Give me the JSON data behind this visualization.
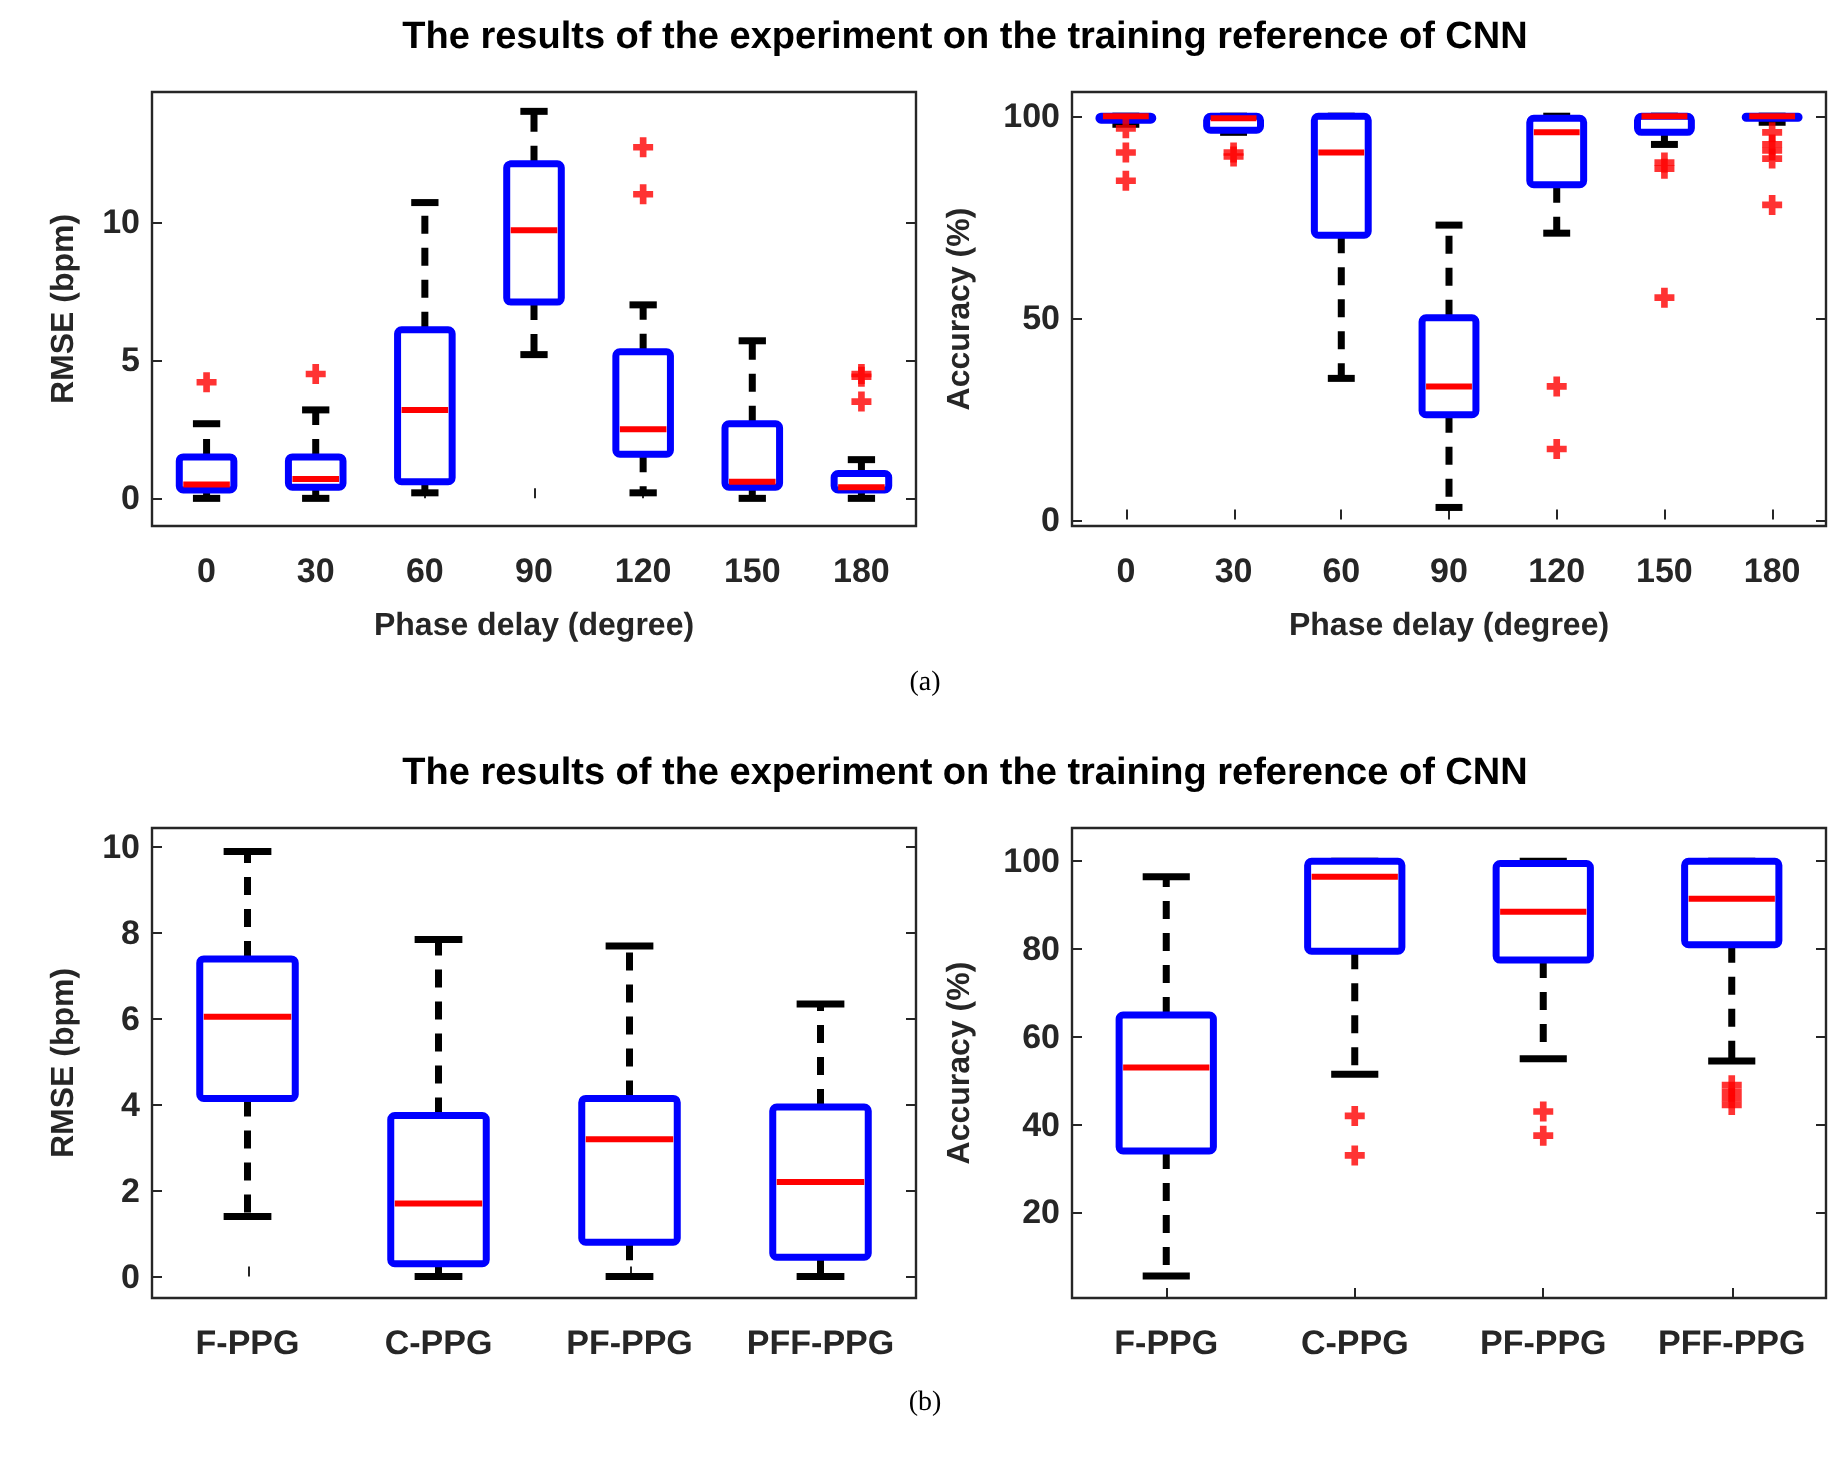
{
  "chart_data": [
    {
      "type": "box",
      "title": "The results of the experiment on the training reference of CNN",
      "xlabel": "Phase delay (degree)",
      "ylabel": "RMSE (bpm)",
      "annotations": [
        "(a)"
      ],
      "categories": [
        "0",
        "30",
        "60",
        "90",
        "120",
        "150",
        "180"
      ],
      "ylim": [
        -1,
        14.7
      ],
      "yticks": [
        0,
        5,
        10
      ],
      "grid": false,
      "marker": "cross",
      "series": [
        {
          "color": "#0000ff",
          "boxes": [
            {
              "low": 0,
              "q1": 0.3,
              "median": 0.5,
              "q3": 1.5,
              "high": 2.7,
              "outliers": [
                4.2
              ]
            },
            {
              "low": 0,
              "q1": 0.4,
              "median": 0.7,
              "q3": 1.5,
              "high": 3.2,
              "outliers": [
                4.5
              ]
            },
            {
              "low": 0.2,
              "q1": 0.6,
              "median": 3.2,
              "q3": 6.1,
              "high": 10.7
            },
            {
              "low": 5.2,
              "q1": 7.1,
              "median": 9.7,
              "q3": 12.1,
              "high": 14.0
            },
            {
              "low": 0.2,
              "q1": 1.6,
              "median": 2.5,
              "q3": 5.3,
              "high": 7.0,
              "outliers": [
                11.0,
                12.7
              ]
            },
            {
              "low": 0,
              "q1": 0.4,
              "median": 0.6,
              "q3": 2.7,
              "high": 5.7
            },
            {
              "low": 0,
              "q1": 0.3,
              "median": 0.4,
              "q3": 0.9,
              "high": 1.4,
              "outliers": [
                3.5,
                4.4,
                4.5
              ]
            }
          ]
        }
      ]
    },
    {
      "type": "box",
      "xlabel": "Phase delay (degree)",
      "ylabel": "Accuracy (%)",
      "categories": [
        "0",
        "30",
        "60",
        "90",
        "120",
        "150",
        "180"
      ],
      "ylim": [
        -1.6,
        106
      ],
      "yticks": [
        0,
        50,
        100
      ],
      "grid": false,
      "marker": "cross",
      "series": [
        {
          "color": "#0000ff",
          "boxes": [
            {
              "low": 98,
              "q1": 99,
              "median": 100,
              "q3": 100,
              "high": 100,
              "outliers": [
                84,
                91,
                97
              ]
            },
            {
              "low": 96,
              "q1": 96.5,
              "median": 99.5,
              "q3": 100,
              "high": 100,
              "outliers": [
                90,
                91
              ]
            },
            {
              "low": 35,
              "q1": 70.5,
              "median": 91,
              "q3": 100,
              "high": 100
            },
            {
              "low": 3,
              "q1": 26,
              "median": 33,
              "q3": 50,
              "high": 73
            },
            {
              "low": 71,
              "q1": 83,
              "median": 96,
              "q3": 99.5,
              "high": 100,
              "outliers": [
                17.5,
                33
              ]
            },
            {
              "low": 93,
              "q1": 96,
              "median": 100,
              "q3": 100,
              "high": 100,
              "outliers": [
                55,
                87,
                88.5
              ]
            },
            {
              "low": 98.5,
              "q1": 99.5,
              "median": 100,
              "q3": 100,
              "high": 100,
              "outliers": [
                78,
                89.5,
                91.5,
                93,
                96
              ]
            }
          ]
        }
      ]
    },
    {
      "type": "box",
      "title": "The results of the experiment on the training reference of CNN",
      "ylabel": "RMSE (bpm)",
      "annotations": [
        "(b)"
      ],
      "categories": [
        "F-PPG",
        "C-PPG",
        "PF-PPG",
        "PFF-PPG"
      ],
      "ylim": [
        -0.5,
        10.45
      ],
      "yticks": [
        0,
        2,
        4,
        6,
        8,
        10
      ],
      "grid": false,
      "marker": "cross",
      "series": [
        {
          "color": "#0000ff",
          "boxes": [
            {
              "low": 1.4,
              "q1": 4.15,
              "median": 6.05,
              "q3": 7.4,
              "high": 9.9
            },
            {
              "low": 0,
              "q1": 0.3,
              "median": 1.7,
              "q3": 3.75,
              "high": 7.85
            },
            {
              "low": 0,
              "q1": 0.8,
              "median": 3.2,
              "q3": 4.15,
              "high": 7.7
            },
            {
              "low": 0,
              "q1": 0.45,
              "median": 2.2,
              "q3": 3.95,
              "high": 6.35
            }
          ]
        }
      ]
    },
    {
      "type": "box",
      "ylabel": "Accuracy (%)",
      "categories": [
        "F-PPG",
        "C-PPG",
        "PF-PPG",
        "PFF-PPG"
      ],
      "ylim": [
        0.5,
        107.6
      ],
      "yticks": [
        20,
        40,
        60,
        80,
        100
      ],
      "grid": false,
      "marker": "cross",
      "series": [
        {
          "color": "#0000ff",
          "boxes": [
            {
              "low": 5.5,
              "q1": 34,
              "median": 53,
              "q3": 65,
              "high": 96.5
            },
            {
              "low": 51.5,
              "q1": 79.5,
              "median": 96.5,
              "q3": 100,
              "high": 100,
              "outliers": [
                33,
                42
              ]
            },
            {
              "low": 55,
              "q1": 77.5,
              "median": 88.5,
              "q3": 99.5,
              "high": 100,
              "outliers": [
                37.5,
                43
              ]
            },
            {
              "low": 54.5,
              "q1": 81,
              "median": 91.5,
              "q3": 100,
              "high": 100,
              "outliers": [
                44.5,
                46,
                47.5,
                49
              ]
            }
          ]
        }
      ]
    }
  ]
}
